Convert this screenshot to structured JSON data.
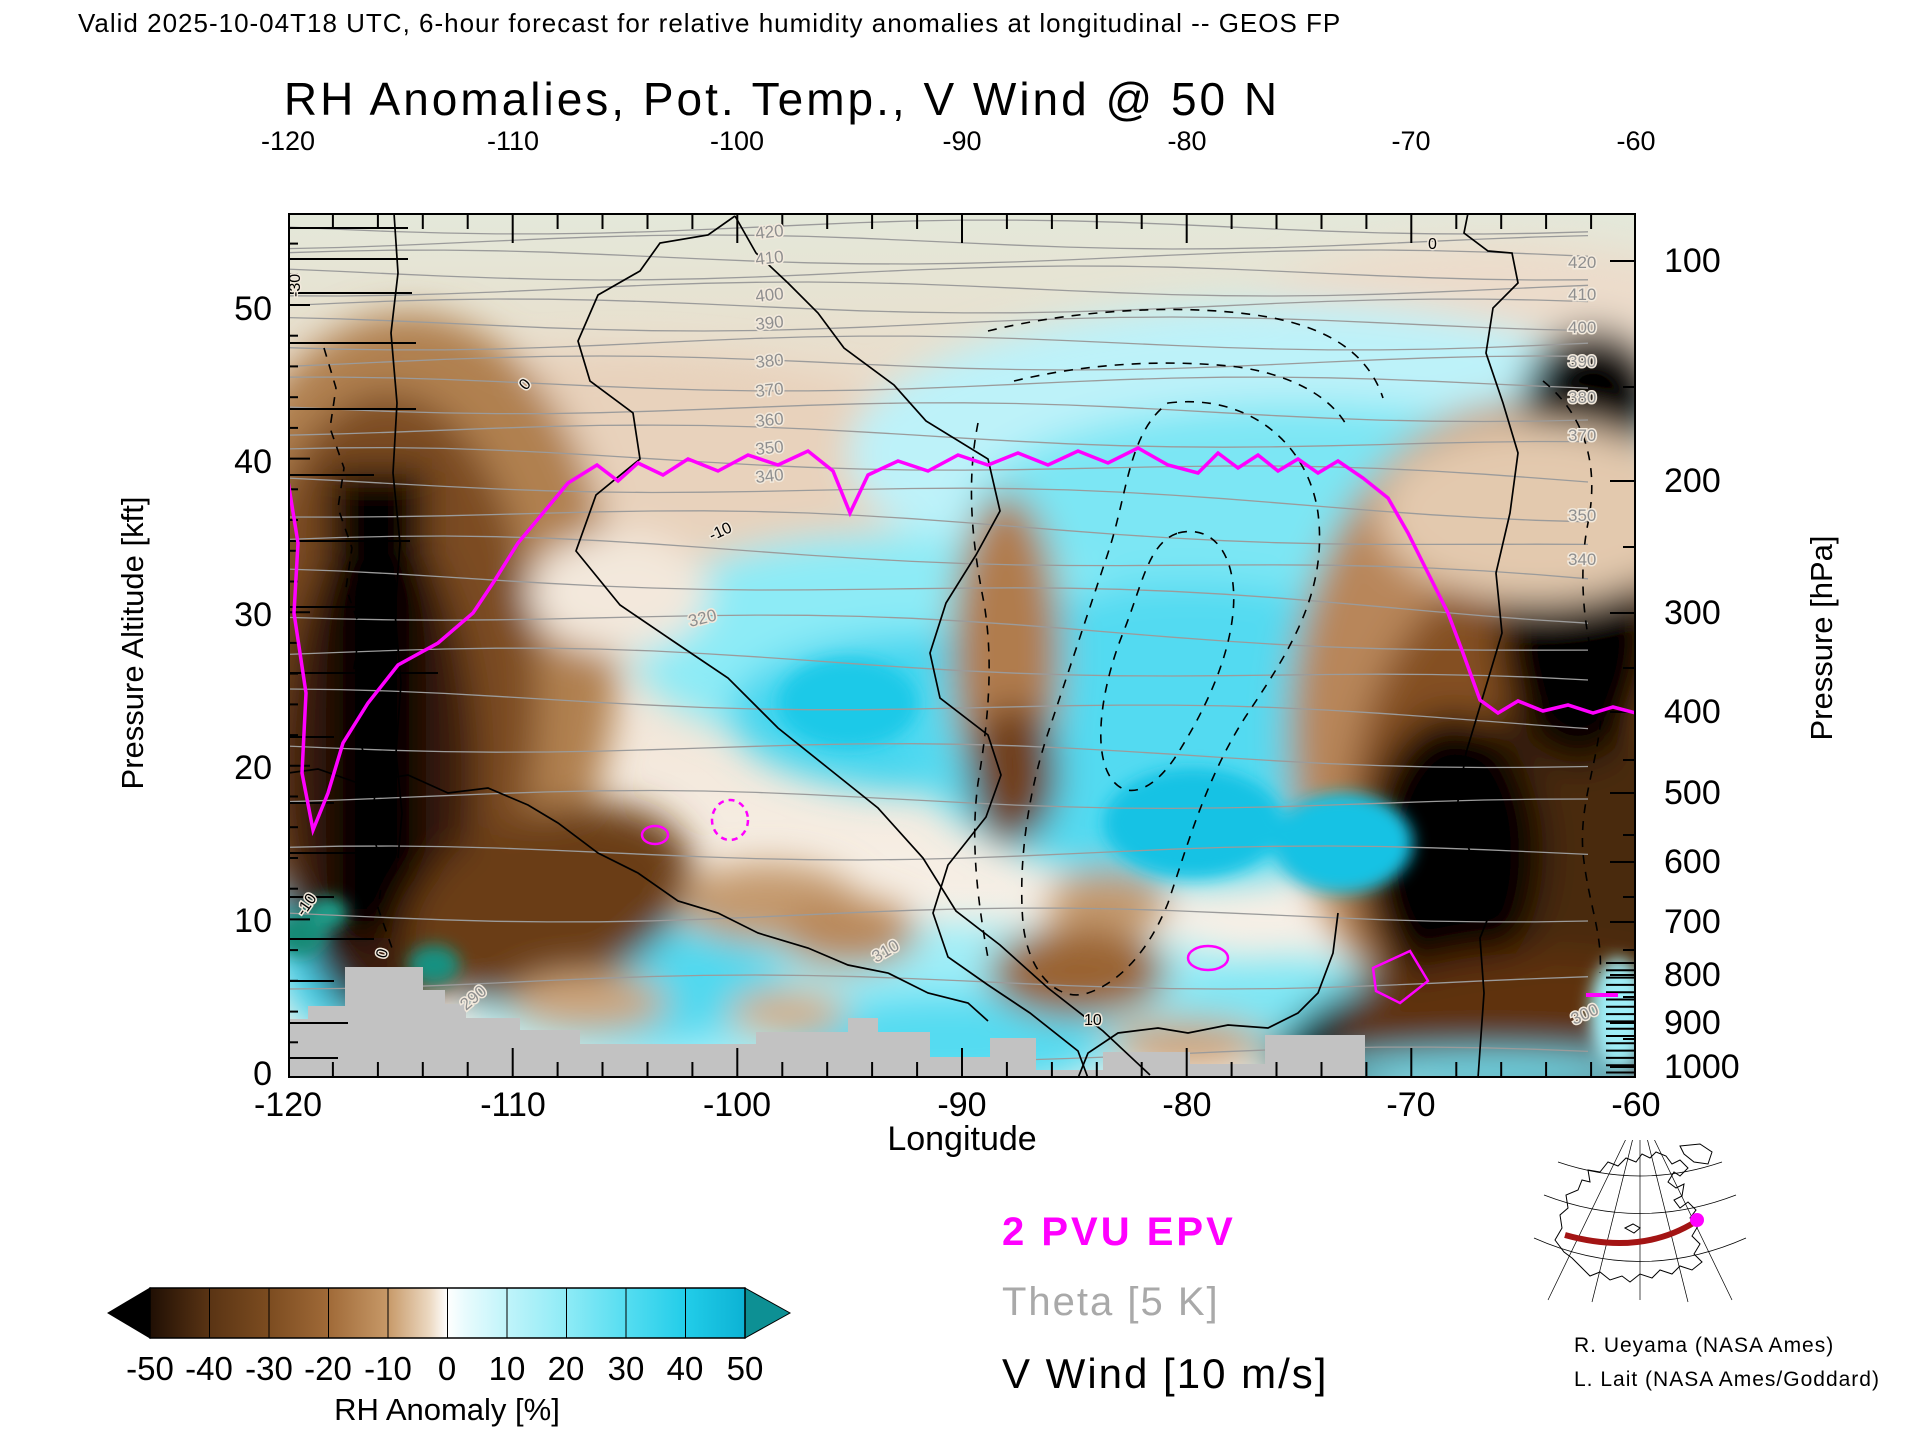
{
  "header": "Valid 2025-10-04T18 UTC, 6-hour forecast for relative humidity anomalies at longitudinal -- GEOS FP",
  "title": "RH Anomalies, Pot. Temp., V Wind @ 50 N",
  "axes": {
    "top": {
      "ticks": [
        "-120",
        "-110",
        "-100",
        "-90",
        "-80",
        "-70",
        "-60"
      ]
    },
    "bottom": {
      "label": "Longitude",
      "ticks": [
        "-120",
        "-110",
        "-100",
        "-90",
        "-80",
        "-70",
        "-60"
      ]
    },
    "left": {
      "label": "Pressure Altitude [kft]",
      "ticks": [
        "50",
        "40",
        "30",
        "20",
        "10",
        "0"
      ]
    },
    "right": {
      "label": "Pressure [hPa]",
      "ticks": [
        "100",
        "200",
        "300",
        "400",
        "500",
        "600",
        "700",
        "800",
        "900",
        "1000"
      ]
    }
  },
  "colorbar": {
    "title": "RH Anomaly [%]",
    "ticks": [
      "-50",
      "-40",
      "-30",
      "-20",
      "-10",
      "0",
      "10",
      "20",
      "30",
      "40",
      "50"
    ]
  },
  "legend": {
    "epv": "2 PVU EPV",
    "theta": "Theta [5 K]",
    "vwind": "V Wind [10 m/s]"
  },
  "credits": [
    "R. Ueyama (NASA Ames)",
    "L. Lait (NASA Ames/Goddard)"
  ],
  "labels": {
    "theta_col": [
      "420",
      "410",
      "400",
      "390",
      "380",
      "370",
      "360",
      "350",
      "340"
    ],
    "theta_right": [
      "420",
      "410",
      "400",
      "390",
      "380",
      "370",
      "350",
      "340"
    ],
    "theta_low": [
      "320",
      "310",
      "300",
      "290"
    ],
    "vwind": [
      "-30",
      "0",
      "-10",
      "-10",
      "0",
      "10",
      "0"
    ]
  },
  "colors": {
    "magenta_epv": "#ff00ff",
    "theta_gray": "#9b9b9b",
    "vwind_black": "#000000",
    "terrain_gray": "#c2c2c2",
    "colorbar_arrow_teal": "#0d9094"
  },
  "chart_data": {
    "type": "heatmap",
    "subtype": "longitude-height filled-contour cross section",
    "title": "RH Anomalies, Pot. Temp., V Wind @ 50 N",
    "valid": "2025-10-04T18 UTC",
    "forecast": "6-hour forecast",
    "model": "GEOS FP",
    "section_latitude": "50 N",
    "x": {
      "label": "Longitude",
      "range": [
        -120,
        -60
      ],
      "ticks": [
        -120,
        -110,
        -100,
        -90,
        -80,
        -70,
        -60
      ]
    },
    "y_left": {
      "label": "Pressure Altitude [kft]",
      "range": [
        0,
        56
      ],
      "ticks": [
        0,
        10,
        20,
        30,
        40,
        50
      ]
    },
    "y_right": {
      "label": "Pressure [hPa]",
      "ticks": [
        100,
        200,
        300,
        400,
        500,
        600,
        700,
        800,
        900,
        1000
      ]
    },
    "fill": {
      "variable": "RH Anomaly",
      "units": "%",
      "levels": [
        -50,
        -40,
        -30,
        -20,
        -10,
        0,
        10,
        20,
        30,
        40,
        50
      ],
      "palette": [
        "#200f04",
        "#5a3414",
        "#7c4c20",
        "#a06a38",
        "#c79968",
        "#f3e2cf",
        "#e8fbfd",
        "#c0f4fa",
        "#8eebf6",
        "#55ddf1",
        "#22cde9",
        "#0d9094"
      ],
      "colorbar_position": "bottom-left"
    },
    "overlays": [
      {
        "name": "2 PVU EPV",
        "style": "thick magenta contour",
        "color": "#ff00ff"
      },
      {
        "name": "Theta",
        "contour_interval_K": 5,
        "style": "thin gray contours",
        "labeled_levels_K": [
          290,
          300,
          310,
          320,
          340,
          350,
          360,
          370,
          380,
          390,
          400,
          410,
          420
        ]
      },
      {
        "name": "V Wind",
        "contour_interval_ms": 10,
        "style": "black contours, dashed negative",
        "labeled_levels_ms": [
          -30,
          -10,
          0,
          10
        ]
      }
    ],
    "features": {
      "dry_columns": "dark brown/black RH minima near longitudes -117..-112 and -74..-62",
      "moist_region": "broad cyan RH maximum between about -105 and -75 below 250 hPa and upper-level cyan band east of -95",
      "tropopause_2pvu": "magenta line near 38 kft across the section, dipping toward 20 kft at both ends",
      "terrain": "gray surface silhouette with Rockies peak near -113"
    },
    "inset": "North America map with 50 N transect (-120 to -60) drawn in dark red with magenta end dot"
  }
}
